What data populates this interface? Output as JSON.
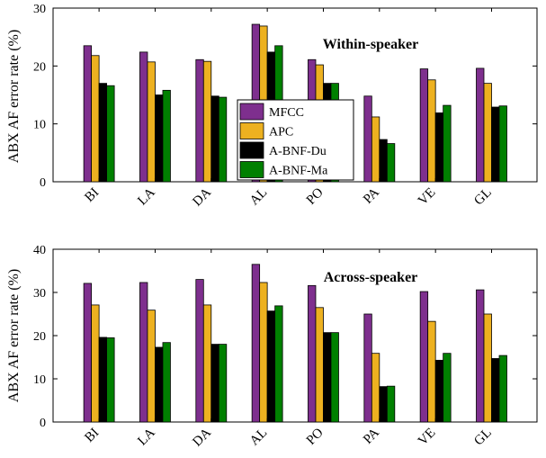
{
  "chart_data": [
    {
      "type": "bar",
      "title": "Within-speaker",
      "ylabel": "ABX AF error rate (%)",
      "ylim": [
        0,
        30
      ],
      "yticks": [
        0,
        10,
        20,
        30
      ],
      "categories": [
        "BI",
        "LA",
        "DA",
        "AL",
        "PO",
        "PA",
        "VE",
        "GL"
      ],
      "series": [
        {
          "name": "MFCC",
          "color": "#7E2F8E",
          "values": [
            23.5,
            22.4,
            21.1,
            27.2,
            21.1,
            14.8,
            19.5,
            19.6
          ]
        },
        {
          "name": "APC",
          "color": "#EDB120",
          "values": [
            21.8,
            20.7,
            20.8,
            26.9,
            20.2,
            11.2,
            17.6,
            17.0
          ]
        },
        {
          "name": "A-BNF-Du",
          "color": "#000000",
          "values": [
            17.0,
            15.0,
            14.8,
            22.4,
            17.0,
            7.3,
            11.9,
            12.9
          ]
        },
        {
          "name": "A-BNF-Ma",
          "color": "#008000",
          "values": [
            16.6,
            15.8,
            14.6,
            23.5,
            17.0,
            6.6,
            13.2,
            13.1
          ]
        }
      ],
      "legend": "center"
    },
    {
      "type": "bar",
      "title": "Across-speaker",
      "ylabel": "ABX AF error rate (%)",
      "ylim": [
        0,
        40
      ],
      "yticks": [
        0,
        10,
        20,
        30,
        40
      ],
      "categories": [
        "BI",
        "LA",
        "DA",
        "AL",
        "PO",
        "PA",
        "VE",
        "GL"
      ],
      "series": [
        {
          "name": "MFCC",
          "color": "#7E2F8E",
          "values": [
            32.1,
            32.3,
            33.0,
            36.5,
            31.6,
            25.0,
            30.2,
            30.6
          ]
        },
        {
          "name": "APC",
          "color": "#EDB120",
          "values": [
            27.1,
            25.9,
            27.1,
            32.3,
            26.5,
            15.9,
            23.3,
            25.0
          ]
        },
        {
          "name": "A-BNF-Du",
          "color": "#000000",
          "values": [
            19.6,
            17.3,
            18.0,
            25.7,
            20.7,
            8.2,
            14.3,
            14.7
          ]
        },
        {
          "name": "A-BNF-Ma",
          "color": "#008000",
          "values": [
            19.5,
            18.4,
            18.0,
            26.9,
            20.7,
            8.3,
            15.9,
            15.4
          ]
        }
      ]
    }
  ]
}
